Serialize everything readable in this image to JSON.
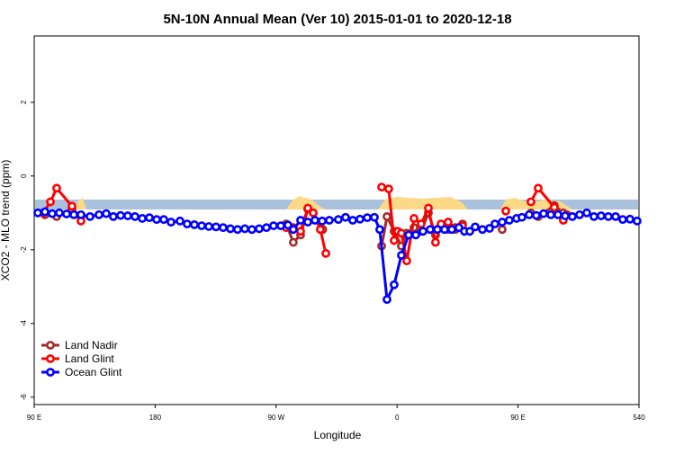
{
  "chart_data": {
    "type": "line",
    "title": "5N-10N Annual Mean (Ver 10)   2015-01-01 to 2020-12-18",
    "xlabel": "Longitude",
    "ylabel": "XCO2 - MLO trend (ppm)",
    "xlim": [
      90,
      540
    ],
    "ylim": [
      -6.2,
      3.8
    ],
    "xticks": [
      {
        "value": 90,
        "label": "90 E"
      },
      180,
      {
        "value": 270,
        "label": "90 W"
      },
      {
        "value": 360,
        "label": "0"
      },
      {
        "value": 450,
        "label": "90 E"
      },
      540
    ],
    "yticks": [
      -6,
      -4,
      -2,
      0,
      2
    ],
    "legend": "bottom-left",
    "series": [
      {
        "name": "Land Nadir",
        "color": "#a52a2a",
        "x": [
          98,
          106.7,
          118.1,
          124.8,
          null,
          277.5,
          282.8,
          288.2,
          293.6,
          297.6,
          304.7,
          null,
          348.5,
          352.5,
          357.8,
          363.2,
          367.2,
          372.6,
          377.9,
          383.3,
          388.6,
          392.7,
          398,
          403.4,
          408.7,
          null,
          438.2,
          null,
          459.6,
          465,
          477,
          483.7
        ],
        "values": [
          -1.05,
          -1.1,
          -0.9,
          -1.1,
          null,
          -1.3,
          -1.8,
          -1.6,
          -0.9,
          -1.0,
          -1.45,
          null,
          -1.9,
          -1.1,
          -1.5,
          -1.9,
          -1.55,
          -1.4,
          -1.5,
          -1.0,
          -1.6,
          -1.35,
          -1.45,
          -1.45,
          -1.3,
          null,
          -1.45,
          null,
          -1.0,
          -1.1,
          -0.8,
          -1.0
        ]
      },
      {
        "name": "Land Glint",
        "color": "#ff0000",
        "x": [
          96.7,
          102.1,
          106.7,
          118.1,
          124.8,
          null,
          277.5,
          282.8,
          288.2,
          293.6,
          297.6,
          302.9,
          307,
          null,
          348.5,
          353.8,
          357.8,
          360.5,
          363.2,
          367.2,
          372.6,
          377.9,
          383.3,
          388.6,
          392.7,
          398,
          403.4,
          408.7,
          null,
          440.9,
          null,
          459.6,
          465,
          477,
          483.7,
          486.4
        ],
        "values": [
          -1.0,
          -0.7,
          -0.33,
          -0.82,
          -1.22,
          null,
          -1.4,
          -1.4,
          -1.5,
          -0.87,
          -1.0,
          -1.45,
          -2.1,
          null,
          -0.3,
          -0.35,
          -1.75,
          -1.5,
          -1.55,
          -2.3,
          -1.15,
          -1.3,
          -0.87,
          -1.8,
          -1.3,
          -1.25,
          -1.4,
          -1.35,
          null,
          -0.95,
          null,
          -0.7,
          -0.33,
          -0.85,
          -1.2,
          -1.05
        ]
      },
      {
        "name": "Ocean Glint",
        "color": "#0000ff",
        "x": [
          92.7,
          98,
          103.4,
          108.7,
          114.1,
          119.5,
          124.8,
          131.5,
          138.2,
          143.6,
          148.9,
          154.3,
          159.6,
          165,
          170.4,
          175.7,
          181.1,
          186.4,
          191.8,
          198.5,
          203.8,
          209.2,
          214.6,
          219.9,
          225.3,
          230.6,
          236,
          241.3,
          246.7,
          252,
          257.4,
          262.8,
          268.1,
          273.5,
          278.8,
          282.8,
          288.2,
          293.6,
          298.9,
          304.3,
          309.6,
          316.3,
          321.7,
          327,
          332.4,
          337.8,
          343.1,
          347.1,
          352.5,
          357.8,
          363.2,
          368.6,
          373.9,
          379.3,
          384.6,
          390,
          395.3,
          400.7,
          406,
          410.1,
          414.1,
          418.1,
          423.5,
          428.8,
          432.8,
          438.2,
          443.5,
          448.9,
          452.9,
          458.3,
          463.6,
          469,
          474.4,
          479.7,
          485.1,
          490.4,
          495.8,
          501.1,
          506.5,
          511.8,
          517.2,
          522.6,
          527.9,
          533.3,
          538.6
        ],
        "values": [
          -1.0,
          -0.97,
          -1.02,
          -1.0,
          -1.03,
          -1.05,
          -1.05,
          -1.1,
          -1.05,
          -1.02,
          -1.1,
          -1.07,
          -1.08,
          -1.1,
          -1.15,
          -1.13,
          -1.18,
          -1.18,
          -1.25,
          -1.22,
          -1.3,
          -1.32,
          -1.35,
          -1.37,
          -1.38,
          -1.4,
          -1.43,
          -1.45,
          -1.43,
          -1.45,
          -1.43,
          -1.4,
          -1.35,
          -1.35,
          -1.33,
          -1.45,
          -1.2,
          -1.25,
          -1.2,
          -1.22,
          -1.2,
          -1.18,
          -1.12,
          -1.2,
          -1.17,
          -1.13,
          -1.12,
          -1.45,
          -3.35,
          -2.95,
          -2.15,
          -1.6,
          -1.6,
          -1.5,
          -1.45,
          -1.45,
          -1.45,
          -1.45,
          -1.4,
          -1.5,
          -1.5,
          -1.38,
          -1.45,
          -1.42,
          -1.3,
          -1.25,
          -1.2,
          -1.15,
          -1.12,
          -1.05,
          -1.07,
          -1.02,
          -1.05,
          -1.05,
          -1.08,
          -1.1,
          -1.05,
          -1.0,
          -1.1,
          -1.08,
          -1.1,
          -1.1,
          -1.18,
          -1.17,
          -1.22
        ]
      }
    ]
  }
}
